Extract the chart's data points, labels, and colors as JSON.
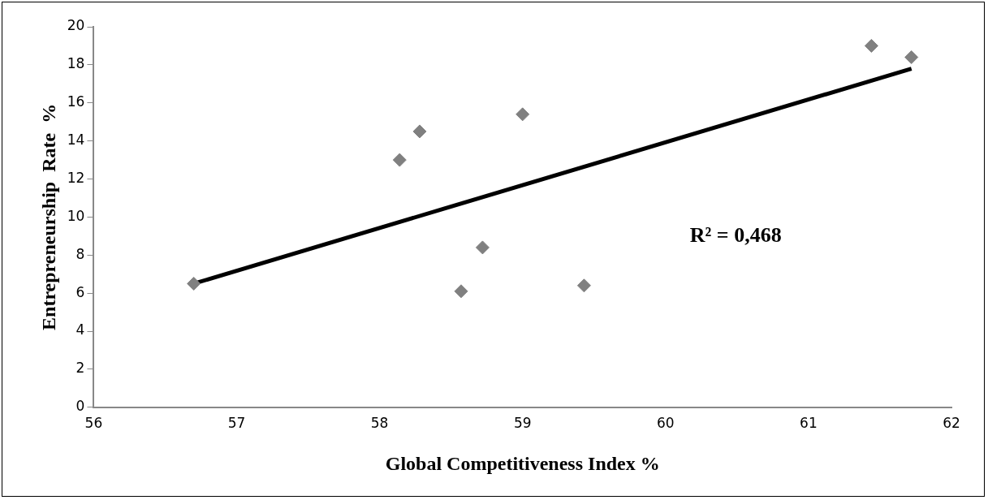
{
  "chart_data": {
    "type": "scatter",
    "xlabel": "Global Competitiveness Index %",
    "ylabel": "Entrepreneurship  Rate  %",
    "x": [
      56.7,
      58.14,
      58.28,
      58.57,
      58.72,
      59.0,
      59.43,
      61.44,
      61.72
    ],
    "series": [
      {
        "type": "scatter",
        "color": "#808080",
        "marker": "diamond",
        "values": [
          6.5,
          13.0,
          14.5,
          6.1,
          8.4,
          15.4,
          6.4,
          19.0,
          18.4
        ]
      },
      {
        "type": "line",
        "color": "#000000",
        "marker": "none",
        "x": [
          56.7,
          61.72
        ],
        "values": [
          6.5,
          17.8
        ]
      }
    ],
    "annotations": [
      "R² = 0,468"
    ],
    "xlim": [
      56,
      62
    ],
    "xticks": [
      56,
      57,
      58,
      59,
      60,
      61,
      62
    ],
    "ylim": [
      0,
      20
    ],
    "yticks": [
      0,
      2,
      4,
      6,
      8,
      10,
      12,
      14,
      16,
      18,
      20
    ],
    "grid": false,
    "legend": false
  }
}
